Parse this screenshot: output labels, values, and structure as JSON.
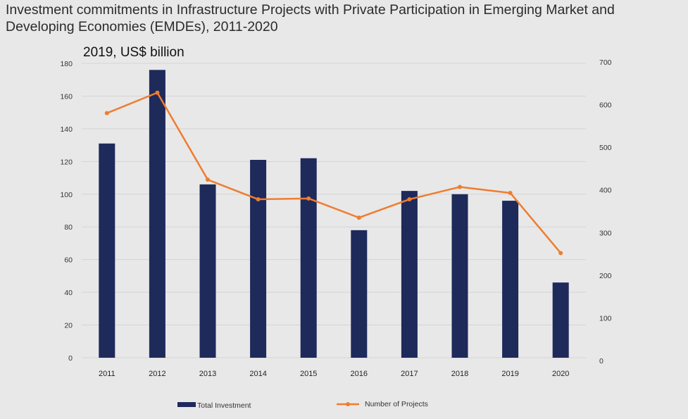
{
  "title": "Investment commitments in Infrastructure Projects with Private Participation in Emerging Market and Developing Economies (EMDEs), 2011-2020",
  "chart_data": {
    "type": "bar",
    "title": "Investment commitments in Infrastructure Projects with Private Participation in Emerging Market and Developing Economies (EMDEs), 2011-2020",
    "subtitle": "2019, US$ billion",
    "categories": [
      "2011",
      "2012",
      "2013",
      "2014",
      "2015",
      "2016",
      "2017",
      "2018",
      "2019",
      "2020"
    ],
    "series": [
      {
        "name": "Total Investment",
        "type": "bar",
        "axis": "left",
        "color": "#1e2a5a",
        "values": [
          131,
          176,
          106,
          121,
          122,
          78,
          102,
          100,
          96,
          46
        ]
      },
      {
        "name": "Number of Projects",
        "type": "line",
        "axis": "right",
        "color": "#ee7d31",
        "values": [
          580,
          628,
          424,
          378,
          380,
          335,
          378,
          407,
          393,
          252
        ]
      }
    ],
    "y_left": {
      "min": 0,
      "max": 180,
      "ticks": [
        "0",
        "20",
        "40",
        "60",
        "80",
        "100",
        "120",
        "140",
        "160",
        "180"
      ]
    },
    "y_right": {
      "min": 0,
      "max": 700,
      "ticks": [
        "0",
        "100",
        "200",
        "300",
        "400",
        "500",
        "600",
        "700"
      ]
    },
    "grid": true,
    "legend": {
      "position": "bottom",
      "items": [
        "Total Investment",
        "Number of Projects"
      ]
    }
  }
}
